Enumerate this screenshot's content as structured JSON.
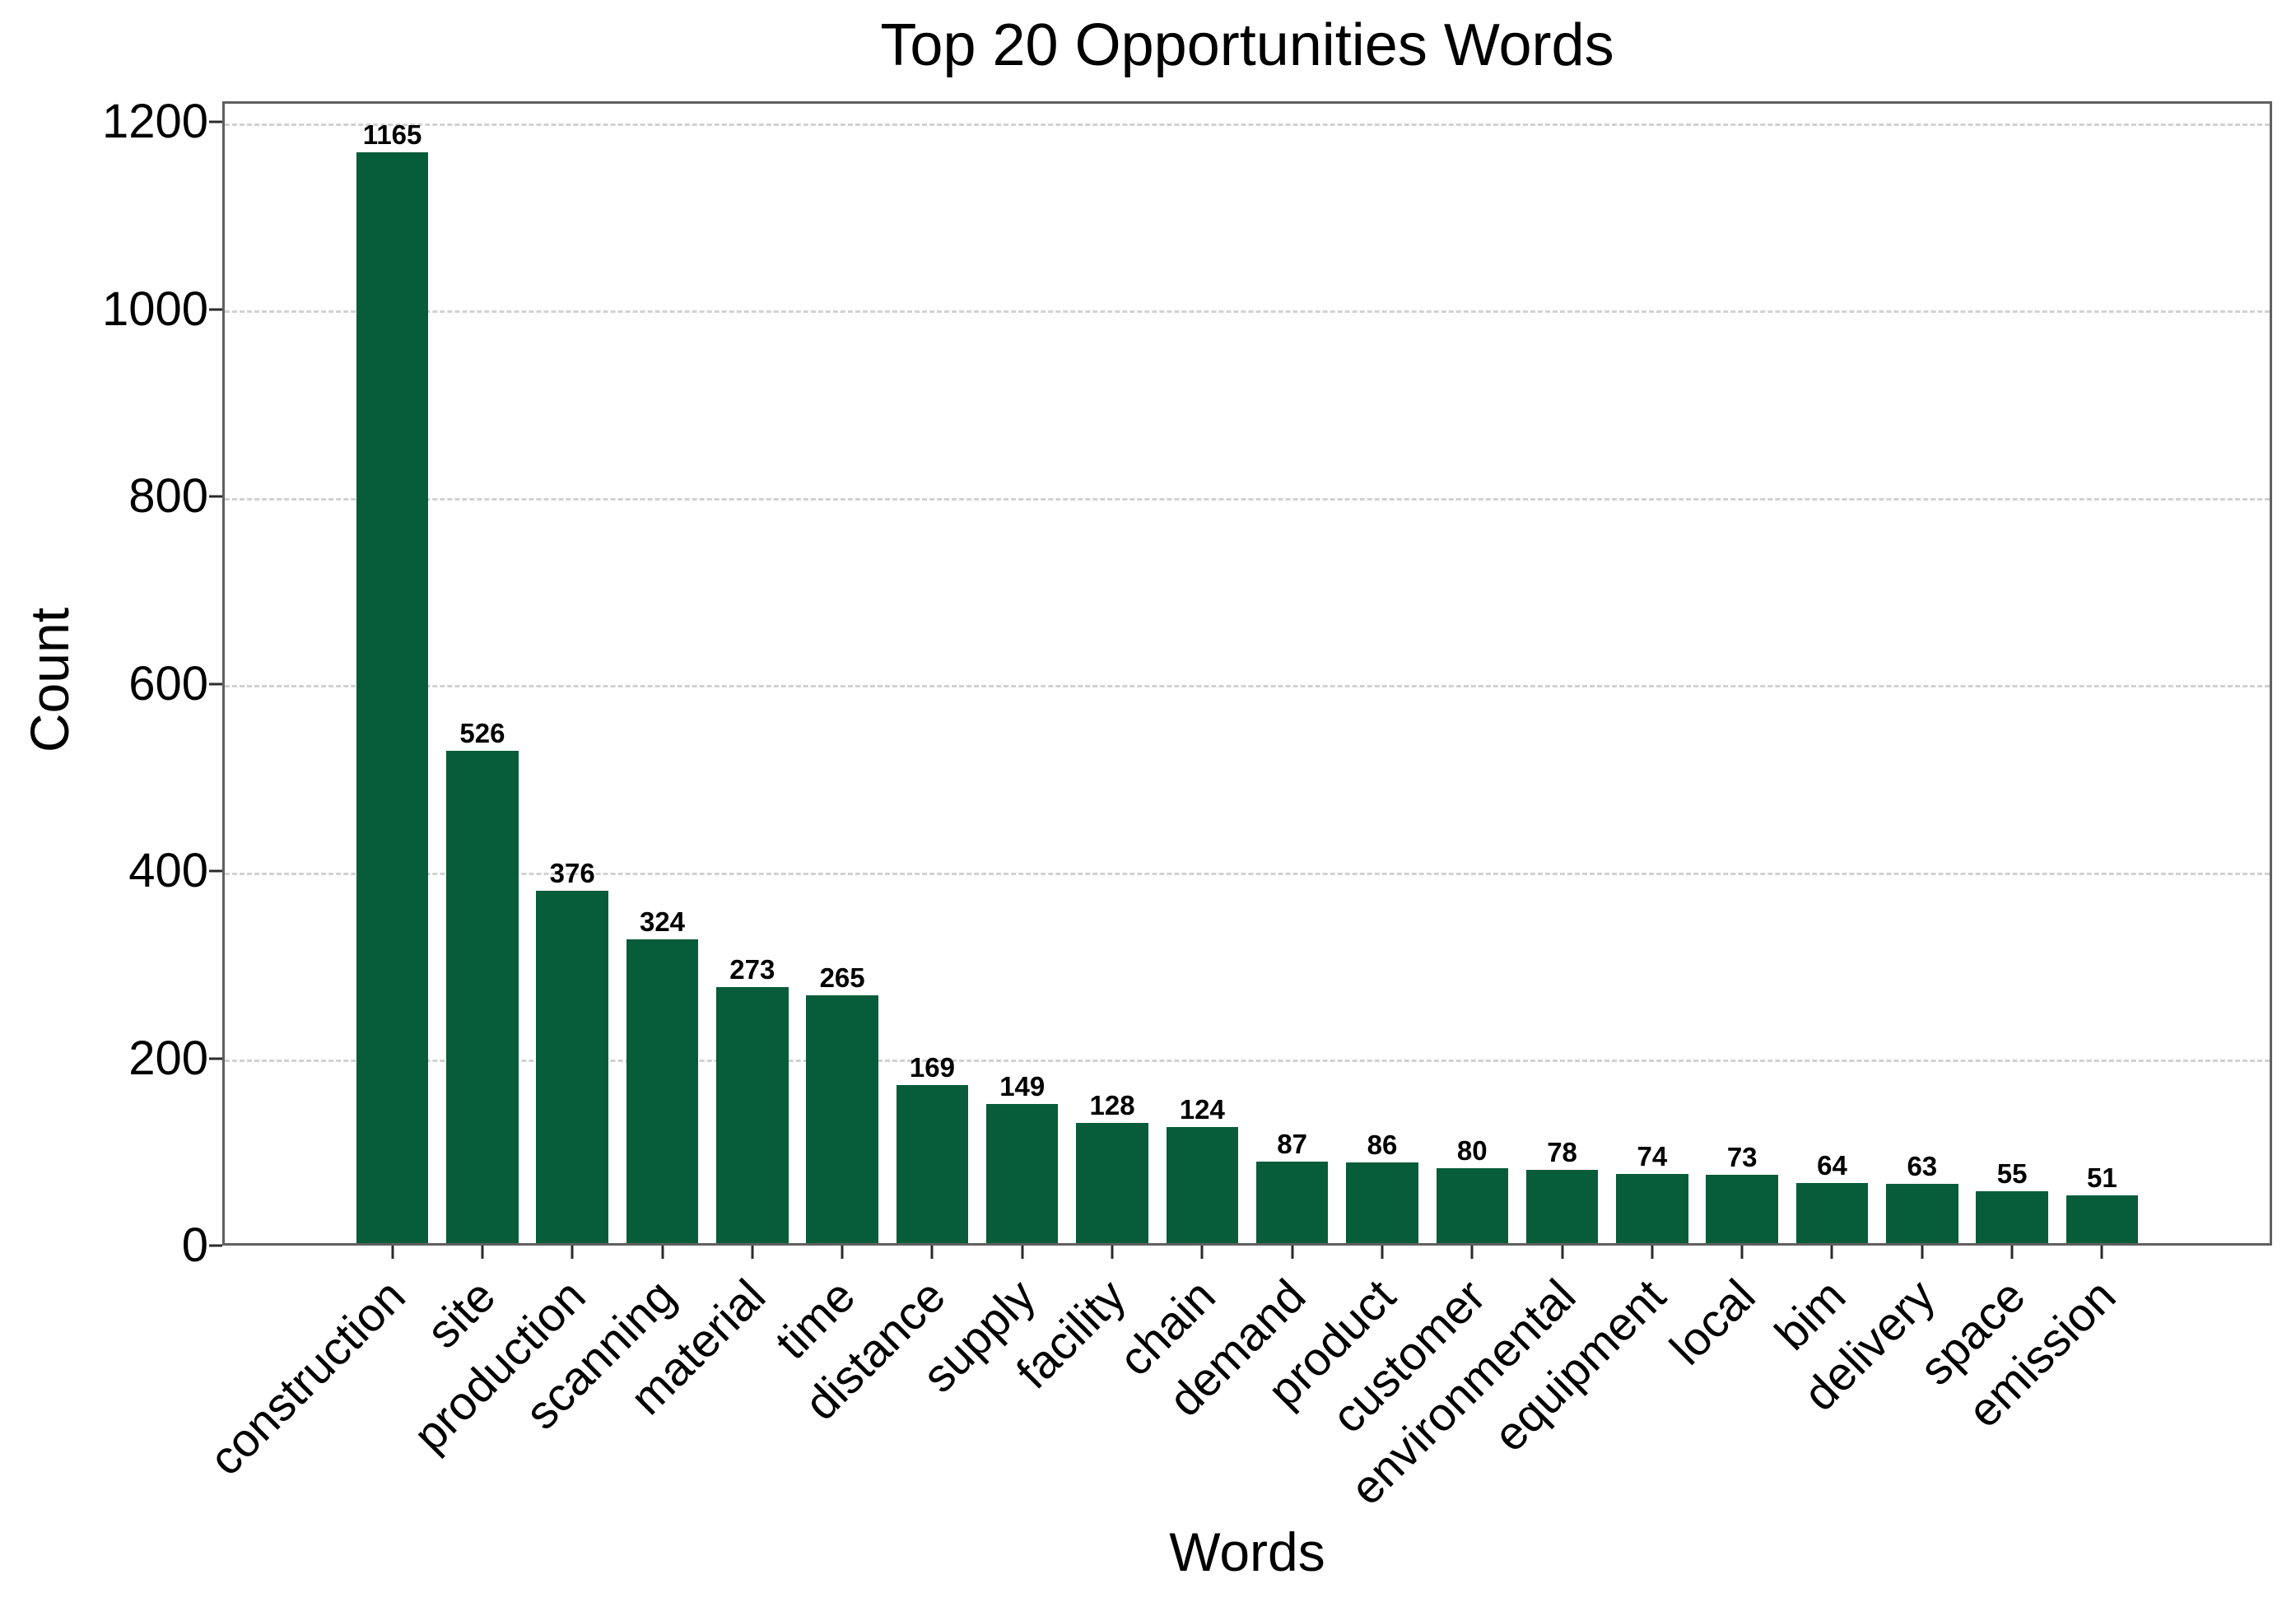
{
  "chart_data": {
    "type": "bar",
    "title": "Top 20 Opportunities Words",
    "xlabel": "Words",
    "ylabel": "Count",
    "categories": [
      "construction",
      "site",
      "production",
      "scanning",
      "material",
      "time",
      "distance",
      "supply",
      "facility",
      "chain",
      "demand",
      "product",
      "customer",
      "environmental",
      "equipment",
      "local",
      "bim",
      "delivery",
      "space",
      "emission"
    ],
    "values": [
      1165,
      526,
      376,
      324,
      273,
      265,
      169,
      149,
      128,
      124,
      87,
      86,
      80,
      78,
      74,
      73,
      64,
      63,
      55,
      51
    ],
    "yticks": [
      0,
      200,
      400,
      600,
      800,
      1000,
      1200
    ],
    "ylim": [
      0,
      1222
    ],
    "bar_color": "#075c39",
    "grid": "horizontal-dashed",
    "grid_color": "#d2d2d2",
    "value_labels_shown": true,
    "xtick_rotation_deg": 45
  }
}
